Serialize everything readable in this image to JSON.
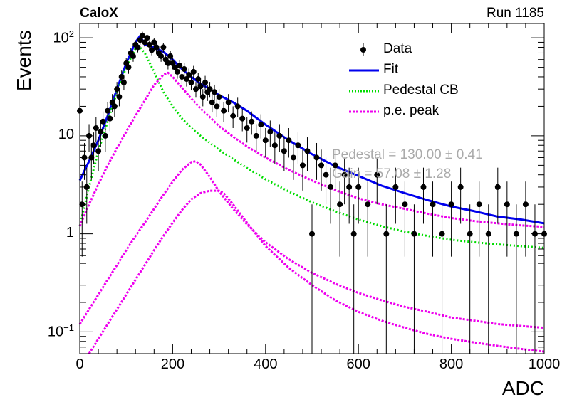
{
  "header": {
    "experiment": "CaloX",
    "run": "Run 1185"
  },
  "legend": {
    "position": "top-right",
    "entries": [
      {
        "label": "Data",
        "style": "marker",
        "color": "#000000"
      },
      {
        "label": "Fit",
        "style": "solid",
        "color": "#0000ee"
      },
      {
        "label": "Pedestal CB",
        "style": "dotted",
        "color": "#00dd00"
      },
      {
        "label": "p.e. peak",
        "style": "dashed",
        "color": "#ee00ee"
      }
    ]
  },
  "annotations": {
    "line1": "Pedestal = 130.00 ± 0.41",
    "line2": "Gain = 57.08 ± 1.28"
  },
  "chart_data": {
    "type": "scatter",
    "xlabel": "ADC",
    "ylabel": "Events",
    "xlim": [
      0,
      1000
    ],
    "ylim": [
      0.06,
      140
    ],
    "yscale": "log",
    "x_ticks": [
      0,
      200,
      400,
      600,
      800,
      1000
    ],
    "y_ticks": [
      {
        "value": 0.1,
        "base": "10",
        "exp": "−1"
      },
      {
        "value": 1,
        "label": "1"
      },
      {
        "value": 10,
        "label": "10"
      },
      {
        "value": 100,
        "base": "10",
        "exp": "2"
      }
    ],
    "grid": false,
    "series": [
      {
        "name": "Data",
        "kind": "points_with_errors",
        "x": [
          0,
          5,
          10,
          15,
          20,
          25,
          30,
          35,
          40,
          45,
          50,
          55,
          60,
          65,
          70,
          75,
          80,
          85,
          90,
          95,
          100,
          105,
          110,
          115,
          120,
          125,
          130,
          135,
          140,
          145,
          150,
          155,
          160,
          165,
          170,
          175,
          180,
          185,
          190,
          195,
          200,
          205,
          210,
          215,
          220,
          225,
          230,
          235,
          240,
          245,
          250,
          255,
          260,
          265,
          270,
          275,
          280,
          285,
          290,
          295,
          300,
          310,
          320,
          330,
          340,
          350,
          360,
          370,
          380,
          390,
          400,
          410,
          420,
          430,
          440,
          450,
          460,
          470,
          480,
          490,
          500,
          510,
          520,
          530,
          540,
          550,
          560,
          570,
          580,
          590,
          600,
          620,
          640,
          660,
          680,
          700,
          720,
          740,
          760,
          780,
          800,
          820,
          840,
          860,
          880,
          900,
          920,
          940,
          960,
          980,
          1000
        ],
        "y": [
          18,
          2,
          6,
          3,
          10,
          6,
          8,
          12,
          7,
          11,
          14,
          10,
          18,
          15,
          22,
          20,
          30,
          25,
          40,
          35,
          55,
          50,
          70,
          65,
          85,
          80,
          95,
          105,
          90,
          100,
          85,
          75,
          90,
          80,
          70,
          65,
          80,
          60,
          55,
          65,
          55,
          50,
          45,
          52,
          40,
          48,
          38,
          42,
          35,
          45,
          30,
          38,
          32,
          25,
          35,
          28,
          30,
          22,
          28,
          20,
          25,
          18,
          22,
          16,
          20,
          15,
          12,
          14,
          10,
          13,
          9,
          11,
          8,
          10,
          7,
          9,
          6,
          8,
          5,
          7,
          1,
          6,
          5,
          4,
          3,
          5,
          2,
          4,
          3,
          1,
          3,
          2,
          4,
          1,
          3,
          2,
          1,
          3,
          2,
          1,
          2,
          3,
          1,
          2,
          1,
          3,
          2,
          1,
          2,
          1,
          1
        ]
      },
      {
        "name": "Fit",
        "kind": "line",
        "x": [
          0,
          20,
          40,
          60,
          80,
          100,
          120,
          130,
          140,
          160,
          180,
          200,
          220,
          240,
          260,
          280,
          300,
          330,
          360,
          400,
          450,
          500,
          550,
          600,
          650,
          700,
          750,
          800,
          850,
          900,
          950,
          1000
        ],
        "y": [
          3.5,
          5.5,
          9,
          16,
          30,
          55,
          90,
          105,
          85,
          80,
          72,
          60,
          48,
          40,
          34,
          30,
          26,
          22,
          18,
          13,
          9,
          6.5,
          4.9,
          3.9,
          3.1,
          2.6,
          2.2,
          1.9,
          1.7,
          1.5,
          1.4,
          1.28
        ]
      },
      {
        "name": "Pedestal CB",
        "kind": "dotted",
        "x": [
          0,
          20,
          40,
          60,
          80,
          100,
          120,
          130,
          140,
          160,
          180,
          200,
          220,
          240,
          260,
          280,
          300,
          330,
          360,
          400,
          450,
          500,
          550,
          600,
          650,
          700,
          750,
          800,
          850,
          900,
          950,
          1000
        ],
        "y": [
          1.2,
          3,
          7,
          14,
          28,
          50,
          78,
          80,
          70,
          45,
          28,
          20,
          15,
          12,
          10,
          8.5,
          7.2,
          5.8,
          4.7,
          3.6,
          2.7,
          2.1,
          1.7,
          1.4,
          1.2,
          1.05,
          0.95,
          0.87,
          0.82,
          0.78,
          0.75,
          0.72
        ]
      },
      {
        "name": "p.e. peak",
        "kind": "dashed",
        "x": [
          0,
          20,
          40,
          60,
          80,
          100,
          120,
          140,
          160,
          180,
          190,
          200,
          220,
          240,
          260,
          280,
          300,
          330,
          360,
          400,
          450,
          500,
          550,
          600,
          650,
          700,
          750,
          800,
          850,
          900,
          950,
          1000
        ],
        "y": [
          1.2,
          2,
          3.2,
          5,
          7.5,
          11,
          16,
          23,
          33,
          42,
          44,
          40,
          31,
          24,
          19,
          15.5,
          12.5,
          9.8,
          7.8,
          6,
          4.5,
          3.5,
          2.8,
          2.3,
          2,
          1.8,
          1.6,
          1.45,
          1.35,
          1.28,
          1.22,
          1.18
        ]
      },
      {
        "name": "",
        "kind": "dashed",
        "x": [
          0,
          20,
          40,
          60,
          80,
          100,
          120,
          140,
          160,
          180,
          200,
          220,
          240,
          250,
          260,
          280,
          300,
          330,
          360,
          400,
          450,
          500,
          550,
          600,
          650,
          700,
          750,
          800,
          850,
          900,
          950,
          1000
        ],
        "y": [
          0.12,
          0.17,
          0.24,
          0.34,
          0.48,
          0.68,
          0.95,
          1.3,
          1.8,
          2.5,
          3.4,
          4.5,
          5.4,
          5.5,
          5.1,
          3.8,
          2.7,
          1.8,
          1.25,
          0.82,
          0.55,
          0.4,
          0.31,
          0.25,
          0.21,
          0.18,
          0.16,
          0.14,
          0.13,
          0.12,
          0.115,
          0.11
        ]
      },
      {
        "name": "",
        "kind": "dashed",
        "x": [
          20,
          40,
          60,
          80,
          100,
          120,
          140,
          160,
          180,
          200,
          220,
          240,
          260,
          280,
          300,
          310,
          330,
          360,
          400,
          450,
          500,
          550,
          600,
          650,
          700,
          750,
          800,
          850,
          900,
          950,
          1000
        ],
        "y": [
          0.06,
          0.085,
          0.12,
          0.17,
          0.24,
          0.34,
          0.48,
          0.68,
          0.95,
          1.3,
          1.75,
          2.25,
          2.6,
          2.75,
          2.75,
          2.6,
          2.0,
          1.3,
          0.75,
          0.45,
          0.3,
          0.21,
          0.16,
          0.13,
          0.11,
          0.095,
          0.085,
          0.078,
          0.072,
          0.067,
          0.063
        ]
      }
    ]
  }
}
